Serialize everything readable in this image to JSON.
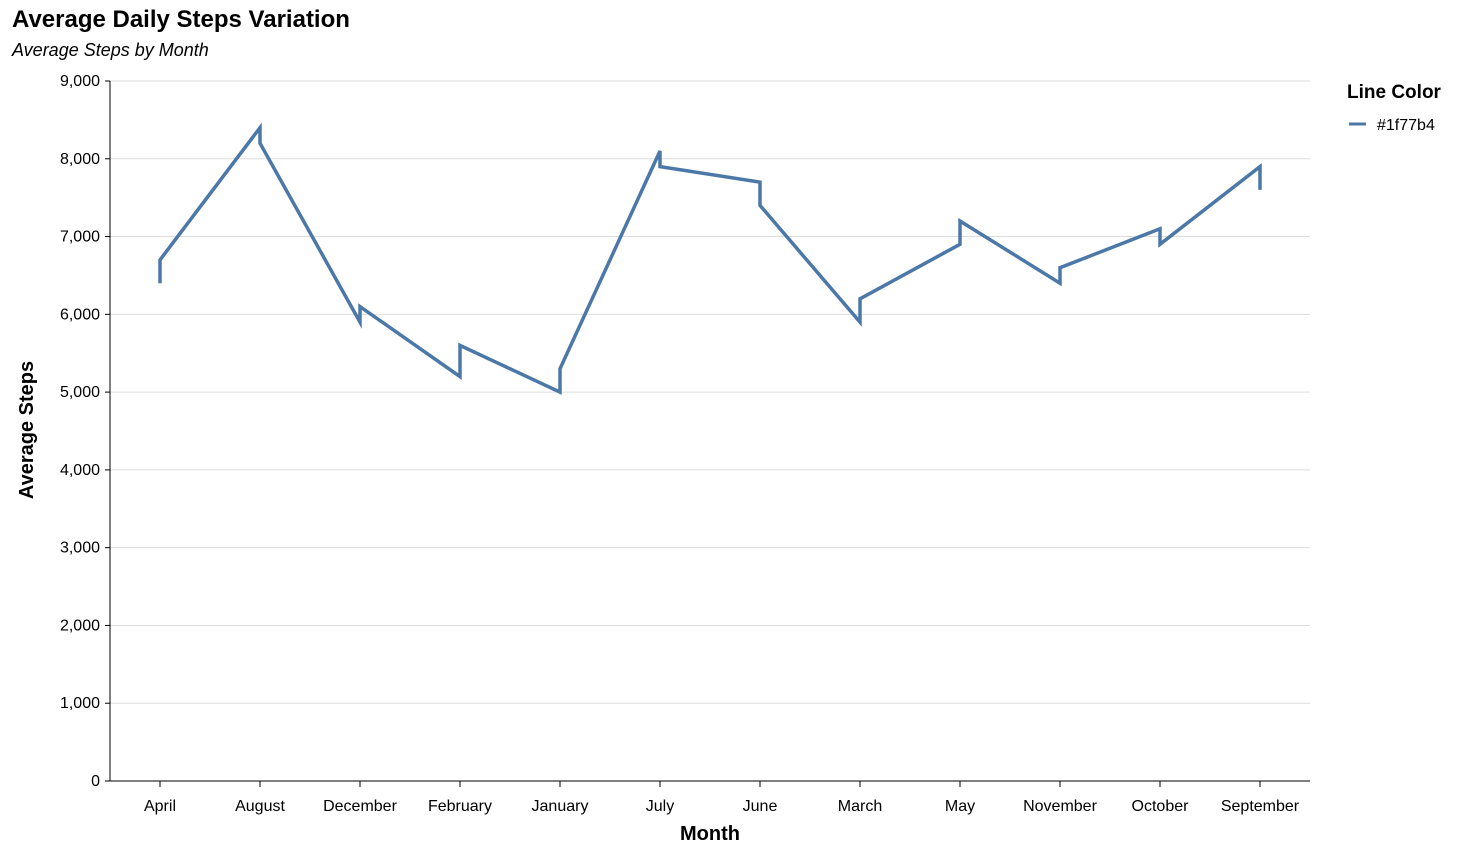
{
  "chart_data": {
    "type": "line",
    "title": "Average Daily Steps Variation",
    "subtitle": "Average Steps by Month",
    "xlabel": "Month",
    "ylabel": "Average Steps",
    "ylim": [
      0,
      9000
    ],
    "yticks": [
      0,
      1000,
      2000,
      3000,
      4000,
      5000,
      6000,
      7000,
      8000,
      9000
    ],
    "ytick_labels": [
      "0",
      "1,000",
      "2,000",
      "3,000",
      "4,000",
      "5,000",
      "6,000",
      "7,000",
      "8,000",
      "9,000"
    ],
    "grid": "horizontal",
    "legend": {
      "title": "Line Color",
      "placement": "top-right",
      "entries": [
        "#1f77b4"
      ]
    },
    "categories": [
      "April",
      "August",
      "December",
      "February",
      "January",
      "July",
      "June",
      "March",
      "May",
      "November",
      "October",
      "September"
    ],
    "series": [
      {
        "name": "#1f77b4",
        "color": "#4c78a8",
        "points": [
          {
            "month": "April",
            "values": [
              6400,
              6700
            ]
          },
          {
            "month": "August",
            "values": [
              8400,
              8200
            ]
          },
          {
            "month": "December",
            "values": [
              5900,
              6100
            ]
          },
          {
            "month": "February",
            "values": [
              5200,
              5600
            ]
          },
          {
            "month": "January",
            "values": [
              5000,
              5300
            ]
          },
          {
            "month": "July",
            "values": [
              8100,
              7900
            ]
          },
          {
            "month": "June",
            "values": [
              7700,
              7400
            ]
          },
          {
            "month": "March",
            "values": [
              5900,
              6200
            ]
          },
          {
            "month": "May",
            "values": [
              6900,
              7200
            ]
          },
          {
            "month": "November",
            "values": [
              6400,
              6600
            ]
          },
          {
            "month": "October",
            "values": [
              7100,
              6900
            ]
          },
          {
            "month": "September",
            "values": [
              7900,
              7600
            ]
          }
        ]
      }
    ]
  }
}
